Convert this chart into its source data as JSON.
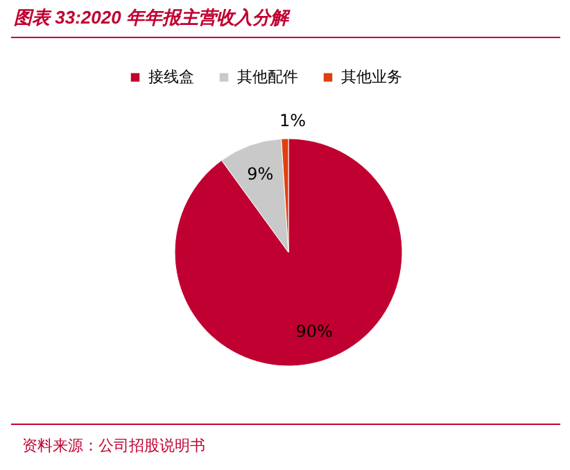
{
  "chart_data": {
    "type": "pie",
    "title": "图表 33:2020 年年报主营收入分解",
    "categories": [
      "接线盒",
      "其他配件",
      "其他业务"
    ],
    "values": [
      90,
      9,
      1
    ],
    "colors": [
      "#c00030",
      "#c9c9c9",
      "#e0400f"
    ],
    "value_labels": [
      "90%",
      "9%",
      "1%"
    ],
    "legend": "top",
    "annotations": [
      "资料来源：公司招股说明书"
    ]
  }
}
